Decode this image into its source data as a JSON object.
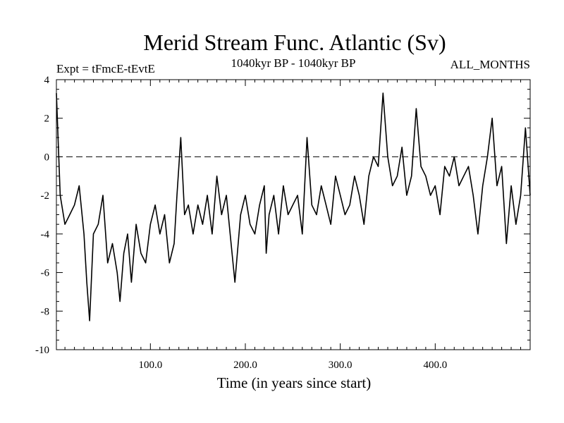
{
  "chart_data": {
    "type": "line",
    "title": "Merid Stream Func. Atlantic (Sv)",
    "subtitle_left": "Expt = tFmcE-tEvtE",
    "subtitle_center": "1040kyr BP - 1040kyr BP",
    "subtitle_right": "ALL_MONTHS",
    "xlabel": "Time (in years since start)",
    "ylabel": "",
    "xlim": [
      1,
      500
    ],
    "ylim": [
      -10,
      4
    ],
    "x_ticks": [
      100,
      200,
      300,
      400
    ],
    "x_tick_labels": [
      "100.0",
      "200.0",
      "300.0",
      "400.0"
    ],
    "y_ticks": [
      -10,
      -8,
      -6,
      -4,
      -2,
      0,
      2,
      4
    ],
    "y_tick_labels": [
      "-10",
      "-8",
      "-6",
      "-4",
      "-2",
      "0",
      "2",
      "4"
    ],
    "reference_line": {
      "y": 0,
      "style": "dashed"
    },
    "grid": false,
    "series": [
      {
        "name": "Merid Stream Func. Atlantic",
        "x": [
          1,
          5,
          10,
          15,
          20,
          25,
          30,
          33,
          36,
          40,
          45,
          50,
          55,
          60,
          65,
          68,
          72,
          76,
          80,
          85,
          90,
          95,
          100,
          105,
          110,
          115,
          120,
          125,
          128,
          132,
          136,
          140,
          145,
          150,
          155,
          160,
          165,
          170,
          175,
          180,
          185,
          189,
          195,
          200,
          205,
          210,
          215,
          220,
          222,
          225,
          230,
          235,
          240,
          245,
          250,
          255,
          260,
          265,
          270,
          275,
          280,
          285,
          290,
          295,
          300,
          305,
          310,
          315,
          320,
          325,
          330,
          335,
          340,
          345,
          350,
          355,
          360,
          365,
          370,
          375,
          380,
          385,
          390,
          395,
          400,
          405,
          410,
          415,
          420,
          425,
          430,
          435,
          440,
          445,
          450,
          455,
          460,
          465,
          470,
          475,
          480,
          485,
          490,
          495,
          500
        ],
        "values": [
          3.3,
          -2.0,
          -3.5,
          -3.0,
          -2.5,
          -1.5,
          -4.0,
          -6.5,
          -8.5,
          -4.0,
          -3.5,
          -2.0,
          -5.5,
          -4.5,
          -6.0,
          -7.5,
          -5.0,
          -4.0,
          -6.5,
          -3.5,
          -5.0,
          -5.5,
          -3.5,
          -2.5,
          -4.0,
          -3.0,
          -5.5,
          -4.5,
          -2.0,
          1.0,
          -3.0,
          -2.5,
          -4.0,
          -2.5,
          -3.5,
          -2.0,
          -4.0,
          -1.0,
          -3.0,
          -2.0,
          -4.5,
          -6.5,
          -3.0,
          -2.0,
          -3.5,
          -4.0,
          -2.5,
          -1.5,
          -5.0,
          -3.0,
          -2.0,
          -4.0,
          -1.5,
          -3.0,
          -2.5,
          -2.0,
          -4.0,
          1.0,
          -2.5,
          -3.0,
          -1.5,
          -2.5,
          -3.5,
          -1.0,
          -2.0,
          -3.0,
          -2.5,
          -1.0,
          -2.0,
          -3.5,
          -1.0,
          0.0,
          -0.5,
          3.3,
          0.0,
          -1.5,
          -1.0,
          0.5,
          -2.0,
          -1.0,
          2.5,
          -0.5,
          -1.0,
          -2.0,
          -1.5,
          -3.0,
          -0.5,
          -1.0,
          0.0,
          -1.5,
          -1.0,
          -0.5,
          -2.0,
          -4.0,
          -1.5,
          0.0,
          2.0,
          -1.5,
          -0.5,
          -4.5,
          -1.5,
          -3.5,
          -2.0,
          1.5,
          -2.0
        ]
      }
    ]
  }
}
